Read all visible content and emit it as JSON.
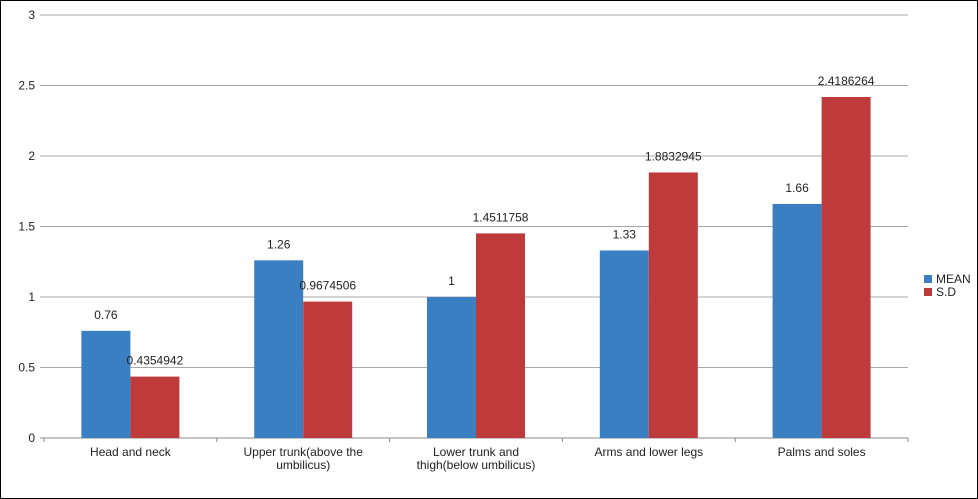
{
  "chart_data": {
    "type": "bar",
    "title": "",
    "xlabel": "",
    "ylabel": "",
    "ylim": [
      0,
      3
    ],
    "yticks": [
      0,
      0.5,
      1,
      1.5,
      2,
      2.5,
      3
    ],
    "ytick_labels": [
      "0",
      "0.5",
      "1",
      "1.5",
      "2",
      "2.5",
      "3"
    ],
    "grid": true,
    "legend_position": "right",
    "categories": [
      [
        "Head and neck"
      ],
      [
        "Upper trunk(above the",
        "umbilicus)"
      ],
      [
        "Lower trunk and",
        "thigh(below umbilicus)"
      ],
      [
        "Arms and lower legs"
      ],
      [
        "Palms and soles"
      ]
    ],
    "series": [
      {
        "name": "MEAN",
        "color": "#3a7fc1",
        "values": [
          0.76,
          1.26,
          1,
          1.33,
          1.66
        ],
        "labels": [
          "0.76",
          "1.26",
          "1",
          "1.33",
          "1.66"
        ]
      },
      {
        "name": "S.D",
        "color": "#bf3a3a",
        "values": [
          0.4354942,
          0.9674506,
          1.4511758,
          1.8832945,
          2.4186264
        ],
        "labels": [
          "0.4354942",
          "0.9674506",
          "1.4511758",
          "1.8832945",
          "2.4186264"
        ]
      }
    ]
  }
}
